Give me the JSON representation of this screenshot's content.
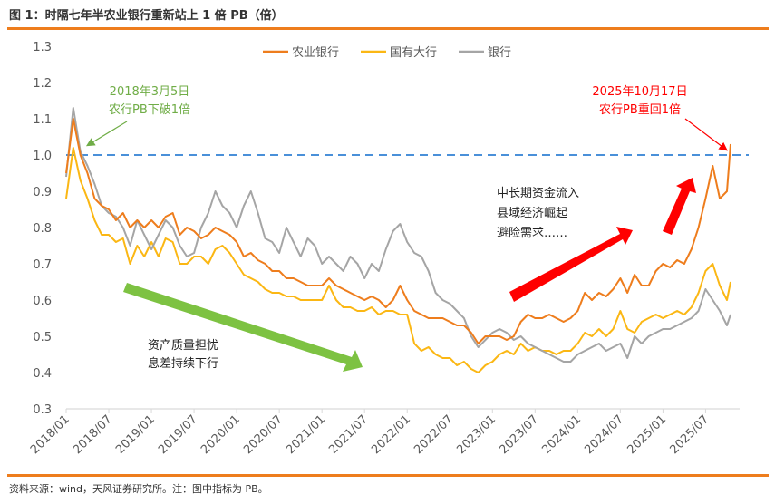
{
  "header": {
    "title": "图 1：时隔七年半农业银行重新站上 1 倍 PB（倍）"
  },
  "footer": {
    "source": "资料来源：wind，天风证券研究所。注：图中指标为 PB。"
  },
  "chart_data": {
    "type": "line",
    "title": "",
    "xlabel": "",
    "ylabel": "",
    "ylim": [
      0.3,
      1.3
    ],
    "yticks": [
      "0.3",
      "0.4",
      "0.5",
      "0.6",
      "0.7",
      "0.8",
      "0.9",
      "1.0",
      "1.1",
      "1.2",
      "1.3"
    ],
    "xticks": [
      "2018/01",
      "2018/07",
      "2019/01",
      "2019/07",
      "2020/01",
      "2020/07",
      "2021/01",
      "2021/07",
      "2022/01",
      "2022/07",
      "2023/01",
      "2023/07",
      "2024/01",
      "2024/07",
      "2025/01",
      "2025/07"
    ],
    "grid": false,
    "legend_position": "top-center",
    "reference_line": {
      "value": 1.0,
      "color": "#4a90d9",
      "style": "dashed"
    },
    "x": [
      "2018-01",
      "2018-02",
      "2018-03",
      "2018-04",
      "2018-05",
      "2018-06",
      "2018-07",
      "2018-08",
      "2018-09",
      "2018-10",
      "2018-11",
      "2018-12",
      "2019-01",
      "2019-02",
      "2019-03",
      "2019-04",
      "2019-05",
      "2019-06",
      "2019-07",
      "2019-08",
      "2019-09",
      "2019-10",
      "2019-11",
      "2019-12",
      "2020-01",
      "2020-02",
      "2020-03",
      "2020-04",
      "2020-05",
      "2020-06",
      "2020-07",
      "2020-08",
      "2020-09",
      "2020-10",
      "2020-11",
      "2020-12",
      "2021-01",
      "2021-02",
      "2021-03",
      "2021-04",
      "2021-05",
      "2021-06",
      "2021-07",
      "2021-08",
      "2021-09",
      "2021-10",
      "2021-11",
      "2021-12",
      "2022-01",
      "2022-02",
      "2022-03",
      "2022-04",
      "2022-05",
      "2022-06",
      "2022-07",
      "2022-08",
      "2022-09",
      "2022-10",
      "2022-11",
      "2022-12",
      "2023-01",
      "2023-02",
      "2023-03",
      "2023-04",
      "2023-05",
      "2023-06",
      "2023-07",
      "2023-08",
      "2023-09",
      "2023-10",
      "2023-11",
      "2023-12",
      "2024-01",
      "2024-02",
      "2024-03",
      "2024-04",
      "2024-05",
      "2024-06",
      "2024-07",
      "2024-08",
      "2024-09",
      "2024-10",
      "2024-11",
      "2024-12",
      "2025-01",
      "2025-02",
      "2025-03",
      "2025-04",
      "2025-05",
      "2025-06",
      "2025-07",
      "2025-08",
      "2025-09",
      "2025-10",
      "2025-10-17"
    ],
    "series": [
      {
        "name": "农业银行",
        "color": "#ee7d1d",
        "values": [
          0.95,
          1.1,
          1.0,
          0.95,
          0.88,
          0.86,
          0.85,
          0.82,
          0.84,
          0.8,
          0.82,
          0.8,
          0.82,
          0.8,
          0.83,
          0.84,
          0.78,
          0.8,
          0.79,
          0.77,
          0.78,
          0.8,
          0.79,
          0.78,
          0.76,
          0.72,
          0.73,
          0.71,
          0.7,
          0.68,
          0.68,
          0.66,
          0.66,
          0.65,
          0.64,
          0.64,
          0.64,
          0.66,
          0.64,
          0.63,
          0.62,
          0.61,
          0.6,
          0.61,
          0.6,
          0.58,
          0.6,
          0.64,
          0.6,
          0.57,
          0.56,
          0.55,
          0.55,
          0.55,
          0.54,
          0.53,
          0.53,
          0.51,
          0.48,
          0.5,
          0.5,
          0.5,
          0.49,
          0.5,
          0.54,
          0.56,
          0.55,
          0.55,
          0.56,
          0.55,
          0.54,
          0.55,
          0.57,
          0.62,
          0.6,
          0.62,
          0.61,
          0.63,
          0.66,
          0.62,
          0.67,
          0.64,
          0.64,
          0.68,
          0.7,
          0.69,
          0.71,
          0.7,
          0.74,
          0.8,
          0.88,
          0.97,
          0.88,
          0.9,
          1.03
        ]
      },
      {
        "name": "国有大行",
        "color": "#fbb714",
        "values": [
          0.88,
          1.02,
          0.93,
          0.88,
          0.82,
          0.78,
          0.78,
          0.76,
          0.77,
          0.7,
          0.75,
          0.72,
          0.76,
          0.72,
          0.77,
          0.76,
          0.7,
          0.7,
          0.72,
          0.72,
          0.7,
          0.74,
          0.75,
          0.73,
          0.7,
          0.67,
          0.66,
          0.65,
          0.63,
          0.62,
          0.62,
          0.61,
          0.61,
          0.6,
          0.6,
          0.6,
          0.6,
          0.64,
          0.6,
          0.58,
          0.58,
          0.57,
          0.57,
          0.58,
          0.56,
          0.57,
          0.57,
          0.56,
          0.56,
          0.48,
          0.46,
          0.47,
          0.45,
          0.44,
          0.44,
          0.42,
          0.43,
          0.41,
          0.4,
          0.42,
          0.43,
          0.45,
          0.46,
          0.45,
          0.48,
          0.46,
          0.47,
          0.46,
          0.46,
          0.45,
          0.46,
          0.46,
          0.48,
          0.51,
          0.5,
          0.52,
          0.5,
          0.52,
          0.57,
          0.52,
          0.51,
          0.54,
          0.55,
          0.56,
          0.55,
          0.56,
          0.57,
          0.56,
          0.58,
          0.62,
          0.68,
          0.7,
          0.64,
          0.6,
          0.65
        ]
      },
      {
        "name": "银行",
        "color": "#a5a5a5",
        "values": [
          0.94,
          1.13,
          1.01,
          0.97,
          0.92,
          0.86,
          0.84,
          0.83,
          0.8,
          0.75,
          0.82,
          0.78,
          0.74,
          0.78,
          0.82,
          0.8,
          0.75,
          0.72,
          0.73,
          0.8,
          0.84,
          0.9,
          0.86,
          0.84,
          0.8,
          0.86,
          0.9,
          0.84,
          0.77,
          0.76,
          0.73,
          0.8,
          0.76,
          0.72,
          0.77,
          0.75,
          0.7,
          0.72,
          0.7,
          0.68,
          0.72,
          0.7,
          0.66,
          0.7,
          0.68,
          0.74,
          0.79,
          0.81,
          0.76,
          0.73,
          0.72,
          0.68,
          0.62,
          0.6,
          0.59,
          0.57,
          0.55,
          0.5,
          0.47,
          0.49,
          0.51,
          0.52,
          0.51,
          0.49,
          0.5,
          0.48,
          0.47,
          0.46,
          0.45,
          0.44,
          0.43,
          0.43,
          0.45,
          0.46,
          0.47,
          0.48,
          0.46,
          0.47,
          0.48,
          0.44,
          0.5,
          0.48,
          0.5,
          0.51,
          0.52,
          0.52,
          0.53,
          0.54,
          0.55,
          0.57,
          0.63,
          0.6,
          0.57,
          0.53,
          0.56
        ]
      }
    ],
    "annotations": {
      "break_below": {
        "lines": [
          "2018年3月5日",
          "农行PB下破1倍"
        ],
        "color": "#70ad47"
      },
      "back_above": {
        "lines": [
          "2025年10月17日",
          "农行PB重回1倍"
        ],
        "color": "#ff0000"
      },
      "decline_reasons": {
        "lines": [
          "资产质量担忧",
          "息差持续下行"
        ],
        "arrow_color": "#7dc242"
      },
      "rise_reasons": {
        "lines": [
          "中长期资金流入",
          "县域经济崛起",
          "避险需求……"
        ],
        "arrow_color": "#ff0000"
      }
    }
  }
}
